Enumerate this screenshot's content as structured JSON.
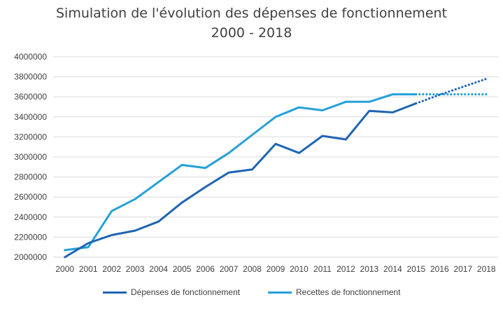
{
  "chart_data": {
    "type": "line",
    "title": "Simulation de l'évolution des dépenses de fonctionnement",
    "subtitle": "2000 - 2018",
    "x": [
      "2000",
      "2001",
      "2002",
      "2003",
      "2004",
      "2005",
      "2006",
      "2007",
      "2008",
      "2009",
      "2010",
      "2011",
      "2012",
      "2013",
      "2014",
      "2015",
      "2016",
      "2017",
      "2018"
    ],
    "ylim": [
      2000000,
      4000000
    ],
    "yticks": [
      "4000000",
      "3800000",
      "3600000",
      "3400000",
      "3200000",
      "3000000",
      "2800000",
      "2600000",
      "2400000",
      "2200000",
      "2000000"
    ],
    "grid": true,
    "legend_position": "bottom",
    "series": [
      {
        "name": "Dépenses de fonctionnement",
        "color": "#1f64b3",
        "values": [
          2000000,
          2140000,
          2220000,
          2265000,
          2355000,
          2545000,
          2700000,
          2845000,
          2875000,
          3130000,
          3040000,
          3210000,
          3175000,
          3460000,
          3445000,
          3535000,
          null,
          null,
          null
        ],
        "projection": [
          null,
          null,
          null,
          null,
          null,
          null,
          null,
          null,
          null,
          null,
          null,
          null,
          null,
          null,
          null,
          3535000,
          3620000,
          3700000,
          3780000
        ]
      },
      {
        "name": "Recettes de fonctionnement",
        "color": "#25a1d6",
        "values": [
          2070000,
          2100000,
          2460000,
          2580000,
          2750000,
          2920000,
          2890000,
          3040000,
          3220000,
          3400000,
          3495000,
          3465000,
          3550000,
          3550000,
          3625000,
          3625000,
          null,
          null,
          null
        ],
        "projection": [
          null,
          null,
          null,
          null,
          null,
          null,
          null,
          null,
          null,
          null,
          null,
          null,
          null,
          null,
          null,
          3625000,
          3625000,
          3625000,
          3625000
        ]
      }
    ]
  }
}
